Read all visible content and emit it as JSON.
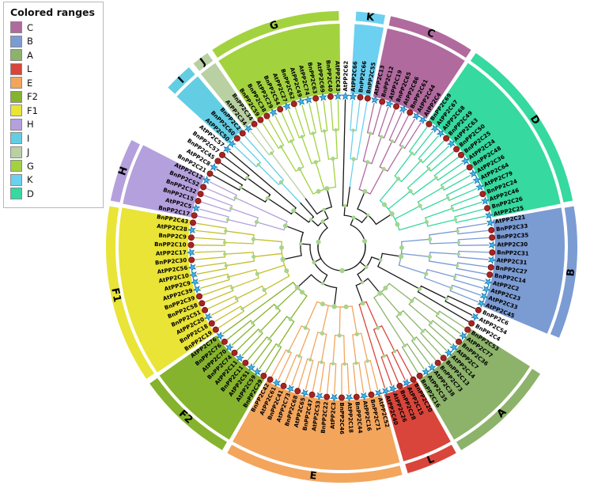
{
  "figure": {
    "legend": {
      "title": "Colored ranges",
      "items": [
        {
          "label": "C",
          "color": "#b06a9e"
        },
        {
          "label": "B",
          "color": "#7b9bd3"
        },
        {
          "label": "A",
          "color": "#8cb369"
        },
        {
          "label": "L",
          "color": "#d9453a"
        },
        {
          "label": "E",
          "color": "#f3a55c"
        },
        {
          "label": "F2",
          "color": "#86b32d"
        },
        {
          "label": "F1",
          "color": "#e9e436"
        },
        {
          "label": "H",
          "color": "#b4a0dc"
        },
        {
          "label": "I",
          "color": "#63cde3"
        },
        {
          "label": "J",
          "color": "#b9d0a2"
        },
        {
          "label": "G",
          "color": "#a3d23f"
        },
        {
          "label": "K",
          "color": "#6cd0f0"
        },
        {
          "label": "D",
          "color": "#36d9a0"
        }
      ]
    },
    "markers": {
      "blue_star": {
        "applies_to_prefix": "At",
        "fill": "#45b6e8",
        "stroke": "#1778ad"
      },
      "red_circle": {
        "applies_to_prefix": "Bn",
        "fill": "#a42522",
        "stroke": "#7a120f"
      }
    },
    "node_dot_color": "#a6d48e",
    "branch_default_color": "#1a1a1a",
    "groups": [
      {
        "label": "",
        "color": null,
        "leaves": [
          "AtPP2C62"
        ]
      },
      {
        "label": "K",
        "color": "#6cd0f0",
        "leaves": [
          "AtPP2C66",
          "BnPP2C66",
          "BnPP2C55"
        ]
      },
      {
        "label": "C",
        "color": "#b06a9e",
        "leaves": [
          "AtPP2C13",
          "BnPP2C12",
          "AtPP2C19",
          "BnPP2C65",
          "AtPP2C86",
          "BnPP2C61",
          "AtPP2C44",
          "AtPP2C4"
        ]
      },
      {
        "label": "D",
        "color": "#36d9a0",
        "leaves": [
          "BnPP2C69",
          "AtPP2C67",
          "AtPP2C68",
          "BnPP2C49",
          "AtPP2C63",
          "BnPP2C50",
          "BnPP2C25",
          "AtPP2C24",
          "BnPP2C48",
          "AtPP2C36",
          "AtPP2C64",
          "AtPP2C79",
          "BnPP2C24",
          "AtPP2C46",
          "BnPP2C26",
          "AtPP2C25"
        ]
      },
      {
        "label": "B",
        "color": "#7b9bd3",
        "leaves": [
          "AtPP2C21",
          "BnPP2C33",
          "BnPP2C35",
          "AtPP2C30",
          "BnPP2C31",
          "AtPP2C31",
          "BnPP2C27",
          "BnPP2C14",
          "AtPP2C2",
          "AtPP2C23",
          "AtPP2C33",
          "AtPP2C45"
        ]
      },
      {
        "label": "",
        "color": null,
        "leaves": [
          "BnPP2C6",
          "AtPP2C54",
          "BnPP2C4"
        ]
      },
      {
        "label": "A",
        "color": "#8cb369",
        "leaves": [
          "BnPP2C53",
          "AtPP2C77",
          "BnPP2C36",
          "AtPP2C7",
          "AtPP2C14",
          "BnPP2C13",
          "BnPP2C73",
          "AtPP2C38",
          "AtPP2C35",
          "BnPP2C16"
        ]
      },
      {
        "label": "L",
        "color": "#d9453a",
        "leaves": [
          "BnPP2C20",
          "AtPP2C15",
          "BnPP2C28",
          "AtPP2C26",
          "AtPP2C40"
        ]
      },
      {
        "label": "E",
        "color": "#f3a55c",
        "leaves": [
          "AtPP2C52",
          "BnPP2C71",
          "AtPP2C16",
          "BnPP2C44",
          "AtPP2C18",
          "BnPP2C46",
          "AtPP2C3",
          "BnPP2C22",
          "AtPP2C53",
          "BnPP2C47",
          "AtPP2C65",
          "BnPP2C68",
          "AtPP2C73",
          "BnPP2C41",
          "AtPP2C61",
          "BnPP2C42"
        ]
      },
      {
        "label": "F2",
        "color": "#86b32d",
        "leaves": [
          "BnPP2C29",
          "AtPP2C59",
          "AtPP2C51",
          "BnPP2C11",
          "AtPP2C11",
          "BnPP2C74",
          "AtPP2C70",
          "BnPP2C76",
          "AtPP2C76"
        ]
      },
      {
        "label": "F1",
        "color": "#e9e436",
        "branch_color": "#c6c02e",
        "leaves": [
          "BnPP2C19",
          "BnPP2C18",
          "AtPP2C20",
          "BnPP2C51",
          "BnPP2C58",
          "BnPP2C39",
          "AtPP2C39",
          "AtPP2C9",
          "AtPP2C10",
          "AtPP2C56",
          "BnPP2C30",
          "AtPP2C17",
          "BnPP2C10",
          "BnPP2C9",
          "AtPP2C28",
          "BnPP2C43"
        ]
      },
      {
        "label": "H",
        "color": "#b4a0dc",
        "leaves": [
          "BnPP2C17",
          "AtPP2C5",
          "BnPP2C15",
          "BnPP2C32",
          "BnPP2C52",
          "AtPP2C12"
        ]
      },
      {
        "label": "",
        "color": null,
        "leaves": [
          "BnPP2C21",
          "AtPP2C8",
          "BnPP2C45",
          "BnPP2C57",
          "AtPP2C57"
        ]
      },
      {
        "label": "I",
        "color": "#63cde3",
        "leaves": [
          "AtPP2C50",
          "BnPP2C60",
          "BnPP2C2"
        ]
      },
      {
        "label": "J",
        "color": "#b9d0a2",
        "leaves": [
          "AtPP2C34",
          "BnPP2C34"
        ]
      },
      {
        "label": "G",
        "color": "#a3d23f",
        "leaves": [
          "BnPP2C59",
          "BnPP2C38",
          "AtPP2C29",
          "BnPP2C54",
          "AtPP2C27",
          "BnPP2C62",
          "AtPP2C49",
          "AtPP2C74",
          "BnPP2C63",
          "AtPP2C69",
          "BnPP2C40",
          "AtPP2C43"
        ]
      }
    ]
  }
}
